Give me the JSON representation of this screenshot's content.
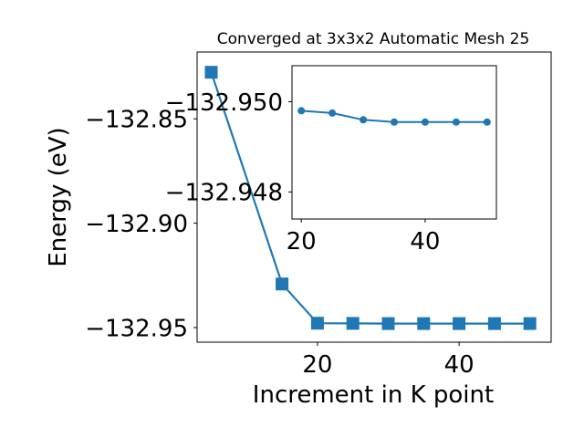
{
  "chart_data": [
    {
      "type": "line",
      "title": "Converged at 3x3x2 Automatic Mesh 25",
      "xlabel": "Increment in K point",
      "ylabel": "Energy (eV)",
      "xlim": [
        3,
        53
      ],
      "ylim": [
        -132.957,
        -132.818
      ],
      "xticks": [
        20,
        40
      ],
      "xtick_labels": [
        "20",
        "40"
      ],
      "yticks": [
        -132.85,
        -132.9,
        -132.95
      ],
      "ytick_labels": [
        "−132.85",
        "−132.90",
        "−132.95"
      ],
      "grid": false,
      "series": [
        {
          "marker": "square",
          "color": "#1f77b4",
          "x": [
            5,
            15,
            20,
            25,
            30,
            35,
            40,
            45,
            50
          ],
          "y": [
            -132.8277,
            -132.9291,
            -132.9479,
            -132.948,
            -132.9481,
            -132.9481,
            -132.9481,
            -132.9481,
            -132.9481
          ]
        }
      ]
    },
    {
      "type": "line",
      "title": "",
      "xlabel": "",
      "ylabel": "",
      "xlim": [
        18.5,
        51.5
      ],
      "ylim": [
        -132.9474,
        -132.9508
      ],
      "xticks": [
        20,
        40
      ],
      "xtick_labels": [
        "20",
        "40"
      ],
      "yticks": [
        -132.95,
        -132.948
      ],
      "ytick_labels": [
        "−132.950",
        "−132.948"
      ],
      "grid": false,
      "series": [
        {
          "marker": "circle",
          "color": "#1f77b4",
          "x": [
            20,
            25,
            30,
            35,
            40,
            45,
            50
          ],
          "y": [
            -132.9498,
            -132.94975,
            -132.9496,
            -132.94955,
            -132.94955,
            -132.94955,
            -132.94955
          ]
        }
      ]
    }
  ]
}
